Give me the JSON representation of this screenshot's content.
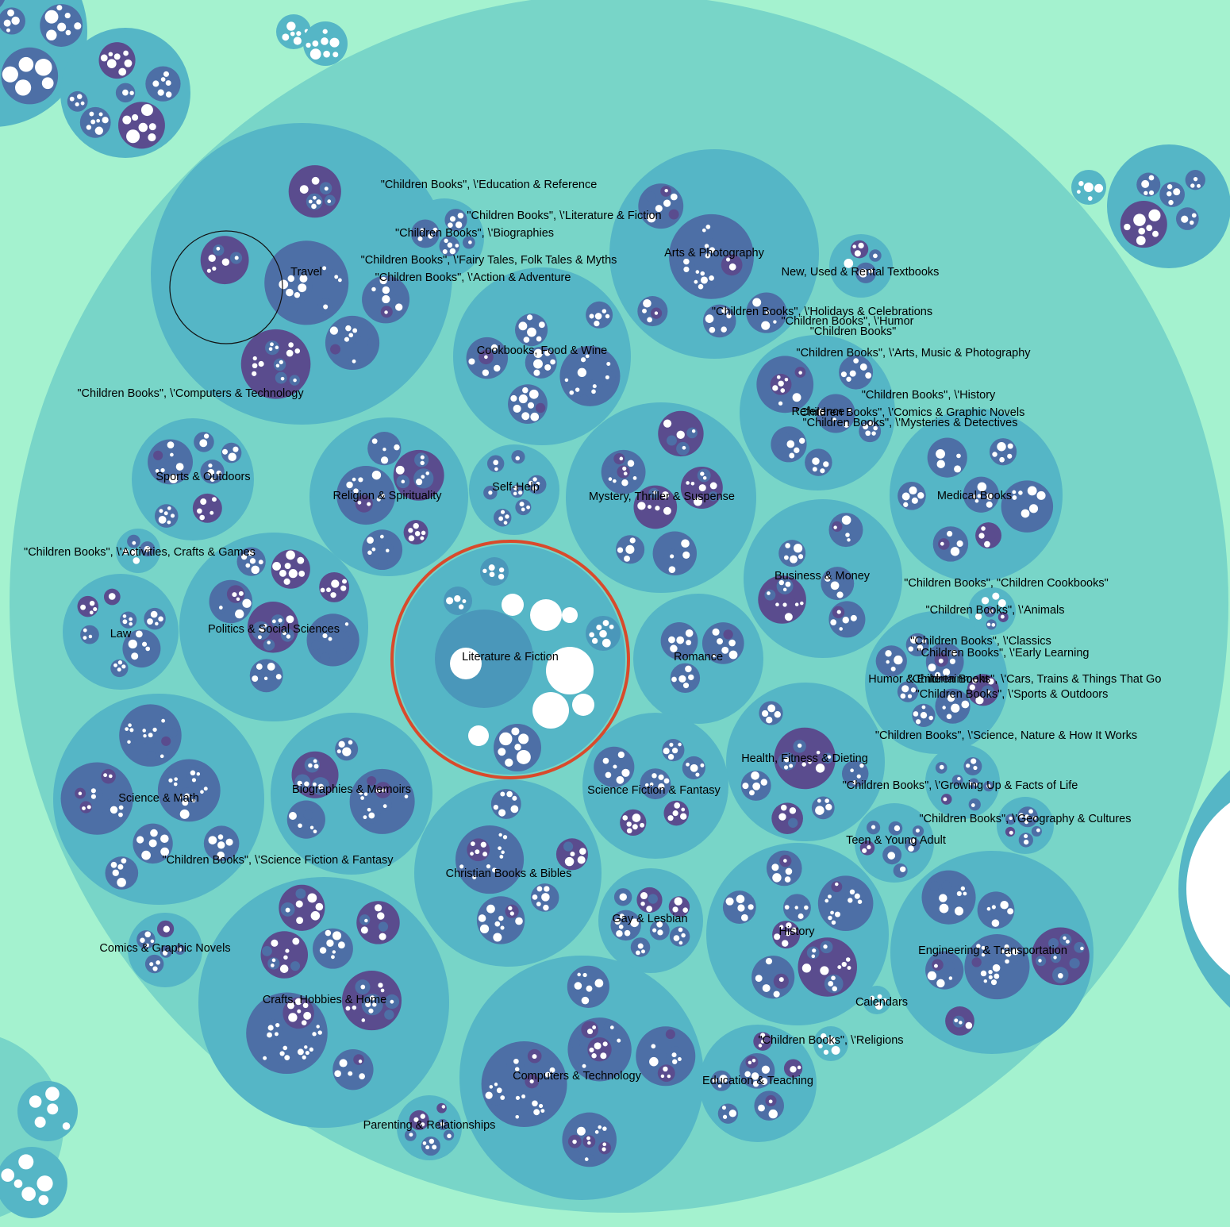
{
  "diagram": {
    "type": "circle-packing",
    "colors": {
      "background": "#a4f2cf",
      "root": "#78d5c8",
      "category": "#55b6c6",
      "subcategory": "#4a97ba",
      "deep": "#4d6fa6",
      "deepest": "#5a4c8e",
      "leaf": "#ffffff",
      "highlight_ring": "#d94a2b",
      "hover_ring": "#111111"
    },
    "highlighted": "Literature & Fiction",
    "hovered": "Travel"
  },
  "labels": [
    {
      "id": "travel",
      "text": "Travel"
    },
    {
      "id": "ch-edu",
      "text": "\"Children Books\", \\'Education & Reference"
    },
    {
      "id": "ch-lit",
      "text": "\"Children Books\", \\'Literature & Fiction"
    },
    {
      "id": "ch-bio",
      "text": "\"Children Books\", \\'Biographies"
    },
    {
      "id": "ch-fairy",
      "text": "\"Children Books\", \\'Fairy Tales, Folk Tales & Myths"
    },
    {
      "id": "ch-action",
      "text": "\"Children Books\", \\'Action & Adventure"
    },
    {
      "id": "arts",
      "text": "Arts & Photography"
    },
    {
      "id": "textbooks",
      "text": "New, Used & Rental Textbooks"
    },
    {
      "id": "ch-holidays",
      "text": "\"Children Books\", \\'Holidays & Celebrations"
    },
    {
      "id": "ch-humor",
      "text": "\"Children Books\", \\'Humor"
    },
    {
      "id": "ch-books",
      "text": "\"Children Books\""
    },
    {
      "id": "cookbooks",
      "text": "Cookbooks, Food & Wine"
    },
    {
      "id": "ch-arts",
      "text": "\"Children Books\", \\'Arts, Music & Photography"
    },
    {
      "id": "ch-computers",
      "text": "\"Children Books\", \\'Computers & Technology"
    },
    {
      "id": "ch-history",
      "text": "\"Children Books\", \\'History"
    },
    {
      "id": "reference",
      "text": "Reference"
    },
    {
      "id": "ch-comics",
      "text": "\"Children Books\", \\'Comics & Graphic Novels"
    },
    {
      "id": "ch-mysteries",
      "text": "\"Children Books\", \\'Mysteries & Detectives"
    },
    {
      "id": "sports",
      "text": "Sports & Outdoors"
    },
    {
      "id": "selfhelp",
      "text": "Self-Help"
    },
    {
      "id": "religion",
      "text": "Religion & Spirituality"
    },
    {
      "id": "mystery",
      "text": "Mystery, Thriller & Suspense"
    },
    {
      "id": "medical",
      "text": "Medical Books"
    },
    {
      "id": "ch-activities",
      "text": "\"Children Books\", \\'Activities, Crafts & Games"
    },
    {
      "id": "business",
      "text": "Business & Money"
    },
    {
      "id": "ch-cookbooks",
      "text": "\"Children Books\", \"Children Cookbooks\""
    },
    {
      "id": "ch-animals",
      "text": "\"Children Books\", \\'Animals"
    },
    {
      "id": "law",
      "text": "Law"
    },
    {
      "id": "politics",
      "text": "Politics & Social Sciences"
    },
    {
      "id": "ch-classics",
      "text": "\"Children Books\", \\'Classics"
    },
    {
      "id": "literature",
      "text": "Literature & Fiction"
    },
    {
      "id": "romance",
      "text": "Romance"
    },
    {
      "id": "ch-early",
      "text": "\"Children Books\", \\'Early Learning"
    },
    {
      "id": "humor",
      "text": "Humor & Entertainment"
    },
    {
      "id": "ch-cars",
      "text": "\"Children Books\", \\'Cars, Trains & Things That Go"
    },
    {
      "id": "ch-sports",
      "text": "\"Children Books\", \\'Sports & Outdoors"
    },
    {
      "id": "ch-science",
      "text": "\"Children Books\", \\'Science, Nature & How It Works"
    },
    {
      "id": "health",
      "text": "Health, Fitness & Dieting"
    },
    {
      "id": "scifi",
      "text": "Science Fiction & Fantasy"
    },
    {
      "id": "ch-growing",
      "text": "\"Children Books\", \\'Growing Up & Facts of Life"
    },
    {
      "id": "biographies",
      "text": "Biographies & Memoirs"
    },
    {
      "id": "science",
      "text": "Science & Math"
    },
    {
      "id": "ch-geo",
      "text": "\"Children Books\", \\'Geography & Cultures"
    },
    {
      "id": "teen",
      "text": "Teen & Young Adult"
    },
    {
      "id": "ch-scifi",
      "text": "\"Children Books\", \\'Science Fiction & Fantasy"
    },
    {
      "id": "christian",
      "text": "Christian Books & Bibles"
    },
    {
      "id": "gay",
      "text": "Gay & Lesbian"
    },
    {
      "id": "history",
      "text": "History"
    },
    {
      "id": "comics",
      "text": "Comics & Graphic Novels"
    },
    {
      "id": "engineering",
      "text": "Engineering & Transportation"
    },
    {
      "id": "crafts",
      "text": "Crafts, Hobbies & Home"
    },
    {
      "id": "calendars",
      "text": "Calendars"
    },
    {
      "id": "ch-religions",
      "text": "\"Children Books\", \\'Religions"
    },
    {
      "id": "computers",
      "text": "Computers & Technology"
    },
    {
      "id": "education",
      "text": "Education & Teaching"
    },
    {
      "id": "parenting",
      "text": "Parenting & Relationships"
    }
  ]
}
